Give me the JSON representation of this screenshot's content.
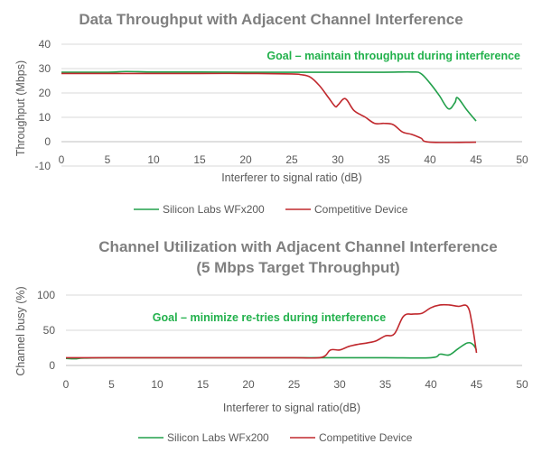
{
  "chart_data": [
    {
      "type": "line",
      "title": "Data Throughput with Adjacent Channel Interference",
      "xlabel": "Interferer to signal ratio (dB)",
      "ylabel": "Throughput (Mbps)",
      "xlim": [
        0,
        50
      ],
      "ylim": [
        -10,
        40
      ],
      "x_ticks": [
        0,
        5,
        10,
        15,
        20,
        25,
        30,
        35,
        40,
        45,
        50
      ],
      "y_ticks": [
        -10,
        0,
        10,
        20,
        30,
        40
      ],
      "grid": "horizontal",
      "legend_position": "bottom",
      "annotation": "Goal – maintain throughput during interference",
      "series": [
        {
          "name": "Silicon Labs WFx200",
          "color": "#22a04b",
          "points": [
            [
              0,
              28.5
            ],
            [
              5,
              28.5
            ],
            [
              7,
              28.8
            ],
            [
              10,
              28.6
            ],
            [
              15,
              28.6
            ],
            [
              20,
              28.5
            ],
            [
              25,
              28.5
            ],
            [
              30,
              28.5
            ],
            [
              35,
              28.5
            ],
            [
              38,
              28.6
            ],
            [
              39,
              28
            ],
            [
              40,
              24
            ],
            [
              41,
              19
            ],
            [
              42,
              13.5
            ],
            [
              42.7,
              16
            ],
            [
              43,
              18
            ],
            [
              44,
              13
            ],
            [
              45,
              8.5
            ]
          ]
        },
        {
          "name": "Competitive Device",
          "color": "#c0282d",
          "points": [
            [
              0,
              28
            ],
            [
              5,
              28
            ],
            [
              10,
              28
            ],
            [
              15,
              28
            ],
            [
              20,
              28
            ],
            [
              25,
              27.8
            ],
            [
              26,
              27.5
            ],
            [
              27,
              26.5
            ],
            [
              28,
              23
            ],
            [
              29,
              18
            ],
            [
              29.7,
              14.5
            ],
            [
              30,
              15
            ],
            [
              30.6,
              17.5
            ],
            [
              31,
              17
            ],
            [
              31.7,
              13
            ],
            [
              32.5,
              11
            ],
            [
              33,
              10
            ],
            [
              34,
              7.5
            ],
            [
              35,
              7.5
            ],
            [
              36,
              7
            ],
            [
              37,
              4
            ],
            [
              38,
              3
            ],
            [
              39,
              1.5
            ],
            [
              40,
              -0.2
            ],
            [
              45,
              -0.2
            ]
          ]
        }
      ]
    },
    {
      "type": "line",
      "title": "Channel Utilization with Adjacent Channel Interference",
      "subtitle": "(5 Mbps Target Throughput)",
      "xlabel": "Interferer to signal ratio(dB)",
      "ylabel": "Channel busy (%)",
      "xlim": [
        0,
        50
      ],
      "ylim": [
        0,
        100
      ],
      "x_ticks": [
        0,
        5,
        10,
        15,
        20,
        25,
        30,
        35,
        40,
        45,
        50
      ],
      "y_ticks": [
        0,
        50,
        100
      ],
      "grid": "horizontal",
      "legend_position": "bottom",
      "annotation": "Goal – minimize re-tries during interference",
      "series": [
        {
          "name": "Silicon Labs WFx200",
          "color": "#22a04b",
          "points": [
            [
              0,
              10
            ],
            [
              1,
              9.5
            ],
            [
              2,
              10.5
            ],
            [
              5,
              11
            ],
            [
              10,
              11
            ],
            [
              15,
              11
            ],
            [
              20,
              11
            ],
            [
              25,
              11
            ],
            [
              30,
              11
            ],
            [
              35,
              11
            ],
            [
              40,
              11
            ],
            [
              41,
              16
            ],
            [
              42,
              15
            ],
            [
              43,
              24
            ],
            [
              44,
              32
            ],
            [
              44.6,
              30
            ],
            [
              45,
              22
            ]
          ]
        },
        {
          "name": "Competitive Device",
          "color": "#c0282d",
          "points": [
            [
              0,
              11
            ],
            [
              5,
              11
            ],
            [
              10,
              11
            ],
            [
              15,
              11
            ],
            [
              20,
              11
            ],
            [
              25,
              11
            ],
            [
              28,
              11.5
            ],
            [
              29,
              22
            ],
            [
              30,
              22
            ],
            [
              31,
              27
            ],
            [
              32,
              30
            ],
            [
              33,
              32
            ],
            [
              34,
              35
            ],
            [
              35,
              42
            ],
            [
              36,
              45
            ],
            [
              37,
              70
            ],
            [
              38,
              73
            ],
            [
              39,
              74
            ],
            [
              40,
              82
            ],
            [
              41,
              86
            ],
            [
              42,
              86
            ],
            [
              43,
              84
            ],
            [
              44,
              84
            ],
            [
              44.5,
              60
            ],
            [
              45,
              18
            ]
          ]
        }
      ]
    }
  ]
}
